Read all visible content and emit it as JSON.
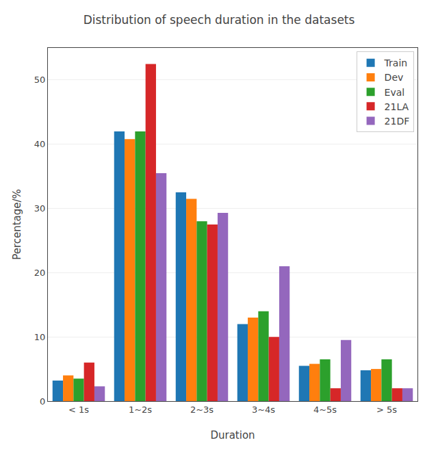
{
  "chart_data": {
    "type": "bar",
    "title": "Distribution of speech duration in the datasets",
    "xlabel": "Duration",
    "ylabel": "Percentage/%",
    "categories": [
      "< 1s",
      "1~2s",
      "2~3s",
      "3~4s",
      "4~5s",
      "> 5s"
    ],
    "series": [
      {
        "name": "Train",
        "values": [
          3.2,
          42.0,
          32.5,
          12.0,
          5.5,
          4.8
        ]
      },
      {
        "name": "Dev",
        "values": [
          4.0,
          40.8,
          31.5,
          13.0,
          5.8,
          5.0
        ]
      },
      {
        "name": "Eval",
        "values": [
          3.5,
          42.0,
          28.0,
          14.0,
          6.5,
          6.5
        ]
      },
      {
        "name": "21LA",
        "values": [
          6.0,
          52.5,
          27.5,
          10.0,
          2.0,
          2.0
        ]
      },
      {
        "name": "21DF",
        "values": [
          2.3,
          35.5,
          29.3,
          21.0,
          9.5,
          2.0
        ]
      }
    ],
    "ylim": [
      0,
      55
    ],
    "yticks": [
      0,
      10,
      20,
      30,
      40,
      50
    ],
    "grid": true,
    "legend": "upper right"
  }
}
